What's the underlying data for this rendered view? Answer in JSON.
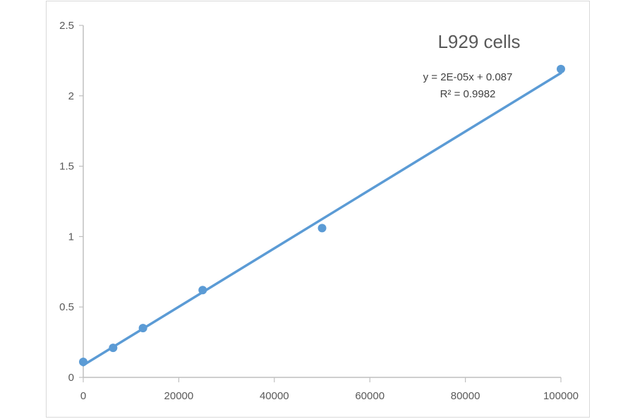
{
  "chart_data": {
    "type": "scatter",
    "title": "L929  cells",
    "xlabel": "",
    "ylabel": "",
    "xlim": [
      0,
      100000
    ],
    "ylim": [
      0,
      2.5
    ],
    "grid": false,
    "legend": "none",
    "x_ticks": [
      "0",
      "20000",
      "40000",
      "60000",
      "80000",
      "100000"
    ],
    "y_ticks": [
      "0",
      "0.5",
      "1",
      "1.5",
      "2",
      "2.5"
    ],
    "series": [
      {
        "name": "L929 cells",
        "x": [
          0,
          6250,
          12500,
          25000,
          50000,
          100000
        ],
        "y": [
          0.11,
          0.21,
          0.35,
          0.62,
          1.06,
          2.19
        ],
        "color": "#5b9bd5"
      }
    ],
    "trendline": {
      "type": "linear",
      "slope": 2e-05,
      "intercept": 0.087,
      "equation": "y = 2E-05x + 0.087",
      "r_squared": "R² = 0.9982",
      "color": "#5b9bd5"
    },
    "annotations": [
      "y = 2E-05x + 0.087",
      "R² = 0.9982"
    ]
  }
}
